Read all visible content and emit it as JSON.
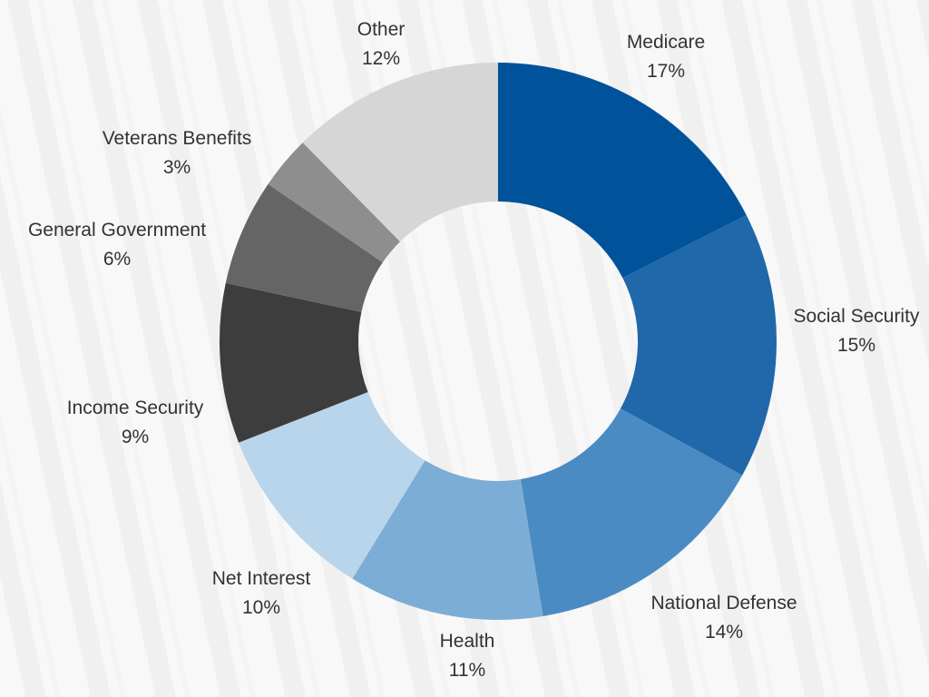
{
  "chart_data": {
    "type": "pie",
    "categories": [
      "Medicare",
      "Social Security",
      "National Defense",
      "Health",
      "Net Interest",
      "Income Security",
      "General Government",
      "Veterans Benefits",
      "Other"
    ],
    "values": [
      17,
      15,
      14,
      11,
      10,
      9,
      6,
      3,
      12
    ],
    "value_labels": [
      "17%",
      "15%",
      "14%",
      "11%",
      "10%",
      "9%",
      "6%",
      "3%",
      "12%"
    ],
    "colors": [
      "#00539b",
      "#2068aa",
      "#4b8bc4",
      "#7cadd6",
      "#b9d5eb",
      "#3d3d3d",
      "#656565",
      "#8e8e8e",
      "#d6d6d6"
    ],
    "style": "donut",
    "legend": "none",
    "grid": false
  }
}
